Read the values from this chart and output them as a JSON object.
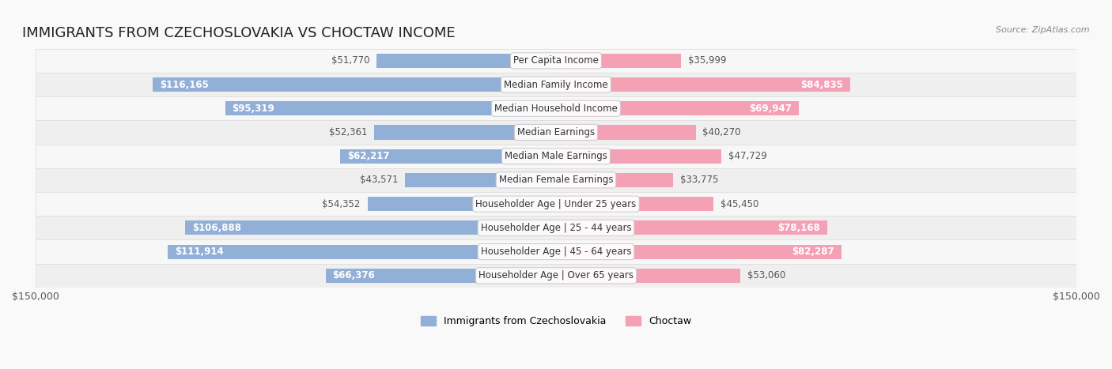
{
  "title": "IMMIGRANTS FROM CZECHOSLOVAKIA VS CHOCTAW INCOME",
  "source": "Source: ZipAtlas.com",
  "categories": [
    "Per Capita Income",
    "Median Family Income",
    "Median Household Income",
    "Median Earnings",
    "Median Male Earnings",
    "Median Female Earnings",
    "Householder Age | Under 25 years",
    "Householder Age | 25 - 44 years",
    "Householder Age | 45 - 64 years",
    "Householder Age | Over 65 years"
  ],
  "left_values": [
    51770,
    116165,
    95319,
    52361,
    62217,
    43571,
    54352,
    106888,
    111914,
    66376
  ],
  "right_values": [
    35999,
    84835,
    69947,
    40270,
    47729,
    33775,
    45450,
    78168,
    82287,
    53060
  ],
  "left_labels": [
    "$51,770",
    "$116,165",
    "$95,319",
    "$52,361",
    "$62,217",
    "$43,571",
    "$54,352",
    "$106,888",
    "$111,914",
    "$66,376"
  ],
  "right_labels": [
    "$35,999",
    "$84,835",
    "$69,947",
    "$40,270",
    "$47,729",
    "$33,775",
    "$45,450",
    "$78,168",
    "$82,287",
    "$53,060"
  ],
  "left_color": "#92afd7",
  "right_color": "#f4a0b5",
  "left_color_legend": "#6baed6",
  "right_color_legend": "#f768a1",
  "max_value": 150000,
  "background_color": "#f9f9f9",
  "bar_background": "#ffffff",
  "title_fontsize": 13,
  "label_fontsize": 8.5,
  "category_fontsize": 8.5,
  "legend_label_left": "Immigrants from Czechoslovakia",
  "legend_label_right": "Choctaw",
  "row_bg_color": "#f0f0f0"
}
